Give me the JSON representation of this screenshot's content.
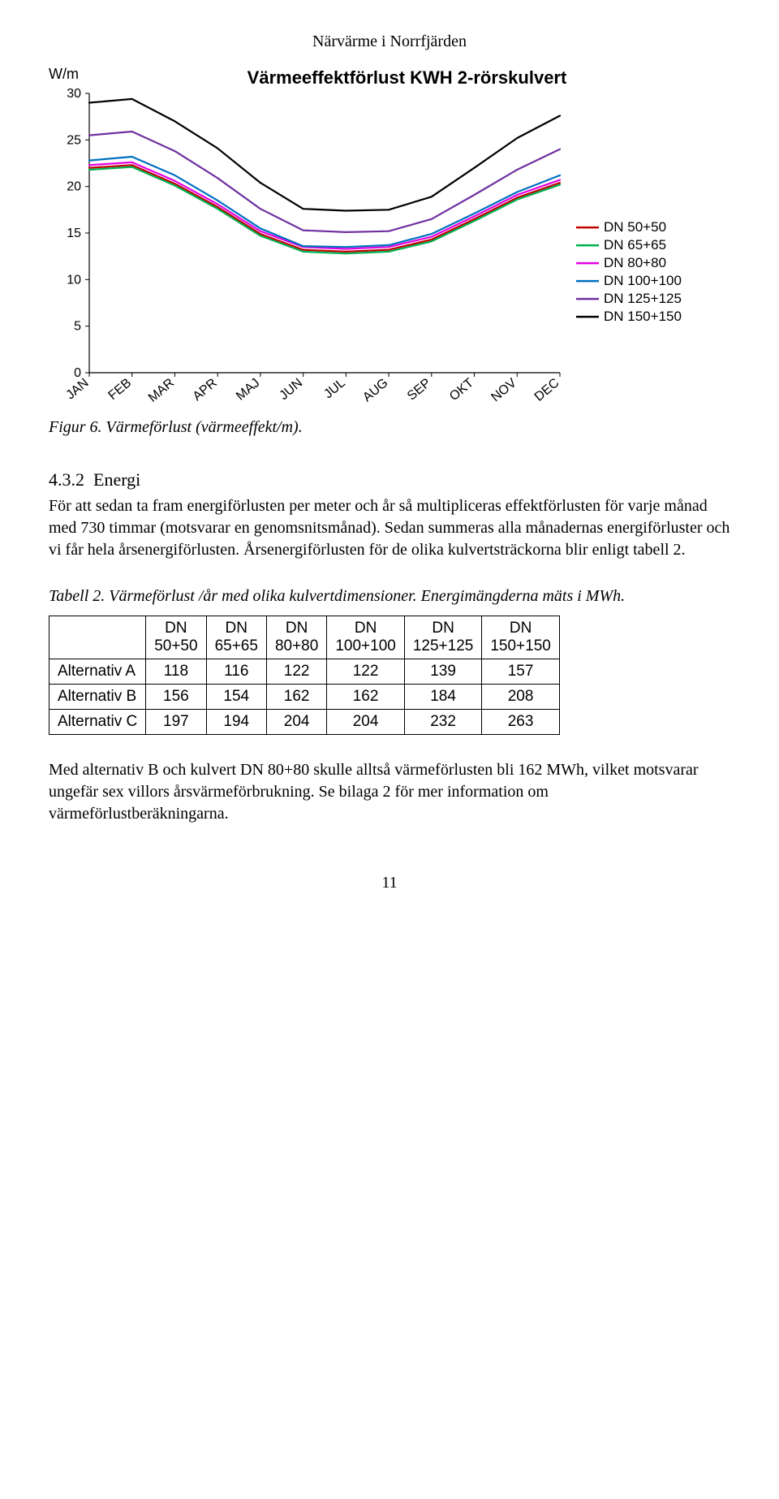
{
  "header": "Närvärme i Norrfjärden",
  "chart": {
    "type": "line",
    "title": "Värmeeffektförlust KWH 2-rörskulvert",
    "y_axis_label": "W/m",
    "xlim": [
      0,
      11
    ],
    "ylim": [
      0,
      30
    ],
    "ytick_step": 5,
    "y_ticks": [
      0,
      5,
      10,
      15,
      20,
      25,
      30
    ],
    "x_categories": [
      "JAN",
      "FEB",
      "MAR",
      "APR",
      "MAJ",
      "JUN",
      "JUL",
      "AUG",
      "SEP",
      "OKT",
      "NOV",
      "DEC"
    ],
    "background_color": "#ffffff",
    "tick_font_family": "Arial",
    "tick_fontsize": 16,
    "title_fontsize": 22,
    "title_fontweight": "bold",
    "line_width": 2.2,
    "series": [
      {
        "name": "DN 50+50",
        "color": "#c00000",
        "values": [
          22.0,
          22.3,
          20.3,
          17.8,
          14.9,
          13.2,
          13.0,
          13.2,
          14.3,
          16.5,
          18.8,
          20.4
        ]
      },
      {
        "name": "DN 65+65",
        "color": "#00b050",
        "values": [
          21.8,
          22.1,
          20.1,
          17.6,
          14.7,
          13.0,
          12.8,
          13.0,
          14.1,
          16.3,
          18.6,
          20.2
        ]
      },
      {
        "name": "DN 80+80",
        "color": "#e300e3",
        "values": [
          22.3,
          22.6,
          20.6,
          18.1,
          15.2,
          13.5,
          13.3,
          13.5,
          14.6,
          16.8,
          19.1,
          20.7
        ]
      },
      {
        "name": "DN 100+100",
        "color": "#0070c0",
        "values": [
          22.8,
          23.2,
          21.2,
          18.5,
          15.5,
          13.6,
          13.5,
          13.7,
          14.9,
          17.1,
          19.4,
          21.2
        ]
      },
      {
        "name": "DN 125+125",
        "color": "#7030a0",
        "values": [
          25.5,
          25.9,
          23.8,
          20.9,
          17.6,
          15.3,
          15.1,
          15.2,
          16.5,
          19.1,
          21.8,
          24.0
        ]
      },
      {
        "name": "DN 150+150",
        "color": "#000000",
        "values": [
          29.0,
          29.4,
          27.0,
          24.1,
          20.4,
          17.6,
          17.4,
          17.5,
          18.9,
          22.0,
          25.2,
          27.6
        ]
      }
    ],
    "legend_position": "right-middle"
  },
  "figure_caption": "Figur 6. Värmeförlust (värmeeffekt/m).",
  "section": {
    "number": "4.3.2",
    "title": "Energi",
    "paragraph": "För att sedan ta fram energiförlusten per meter och år så multipliceras effektförlusten för varje månad med 730 timmar (motsvarar en genomsnitsmånad). Sedan summeras alla månadernas energiförluster och vi får hela årsenergiförlusten. Årsenergiförlusten för de olika kulvertsträckorna blir enligt tabell 2."
  },
  "table_caption": "Tabell 2. Värmeförlust /år med olika kulvertdimensioner. Energimängderna mäts i MWh.",
  "table": {
    "columns": [
      "DN 50+50",
      "DN 65+65",
      "DN 80+80",
      "DN 100+100",
      "DN 125+125",
      "DN 150+150"
    ],
    "rows": [
      {
        "label": "Alternativ A",
        "values": [
          118,
          116,
          122,
          122,
          139,
          157
        ]
      },
      {
        "label": "Alternativ B",
        "values": [
          156,
          154,
          162,
          162,
          184,
          208
        ]
      },
      {
        "label": "Alternativ C",
        "values": [
          197,
          194,
          204,
          204,
          232,
          263
        ]
      }
    ]
  },
  "closing_paragraph": "Med alternativ B och kulvert DN 80+80 skulle alltså värmeförlusten bli 162 MWh, vilket motsvarar ungefär sex villors årsvärmeförbrukning. Se bilaga 2 för mer information om värmeförlustberäkningarna.",
  "page_number": "11"
}
